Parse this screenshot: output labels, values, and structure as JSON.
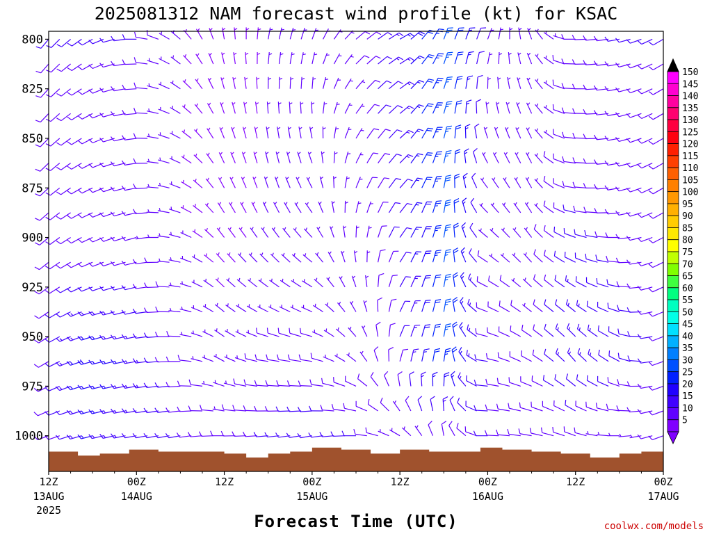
{
  "chart_data": {
    "type": "wind-barb-time-height",
    "title": "2025081312 NAM forecast wind profile (kt) for KSAC",
    "xlabel": "Forecast Time (UTC)",
    "ylabel": "",
    "credit": "coolwx.com/models",
    "x_range": [
      "2025-08-13 12Z",
      "2025-08-17 00Z"
    ],
    "x_ticks": [
      {
        "t": 0,
        "hour": "12Z",
        "date": "13AUG",
        "year": "2025"
      },
      {
        "t": 12,
        "hour": "00Z",
        "date": "14AUG",
        "year": ""
      },
      {
        "t": 24,
        "hour": "12Z",
        "date": "",
        "year": ""
      },
      {
        "t": 36,
        "hour": "00Z",
        "date": "15AUG",
        "year": ""
      },
      {
        "t": 48,
        "hour": "12Z",
        "date": "",
        "year": ""
      },
      {
        "t": 60,
        "hour": "00Z",
        "date": "16AUG",
        "year": ""
      },
      {
        "t": 72,
        "hour": "12Z",
        "date": "",
        "year": ""
      },
      {
        "t": 84,
        "hour": "00Z",
        "date": "17AUG",
        "year": ""
      }
    ],
    "y_ticks_hpa": [
      800,
      825,
      850,
      875,
      900,
      925,
      950,
      975,
      1000
    ],
    "y_range_hpa": [
      796,
      1018
    ],
    "time_step_hours": 1.5,
    "colorbar_kt": [
      "150",
      "145",
      "140",
      "135",
      "130",
      "125",
      "120",
      "115",
      "110",
      "105",
      "100",
      "95",
      "90",
      "85",
      "80",
      "75",
      "70",
      "65",
      "60",
      "55",
      "50",
      "45",
      "40",
      "35",
      "30",
      "25",
      "20",
      "15",
      "10",
      "5"
    ],
    "colorbar_colors": [
      "#ff00ff",
      "#ff00d0",
      "#ff00a0",
      "#ff0070",
      "#ff0040",
      "#ff0010",
      "#ff2000",
      "#ff4000",
      "#ff6000",
      "#ff8000",
      "#ff9800",
      "#ffb000",
      "#ffcc00",
      "#ffe800",
      "#ffff00",
      "#c0ff00",
      "#80ff00",
      "#40ff40",
      "#00ff80",
      "#00ffc0",
      "#00ffe8",
      "#00e0ff",
      "#00b0ff",
      "#0080ff",
      "#0050ff",
      "#0020ff",
      "#2000ff",
      "#4000ff",
      "#6000ff",
      "#8000ff"
    ],
    "surface_pressure_hpa": [
      {
        "t": 0,
        "p": 1008
      },
      {
        "t": 4,
        "p": 1010
      },
      {
        "t": 7,
        "p": 1009
      },
      {
        "t": 11,
        "p": 1007
      },
      {
        "t": 15,
        "p": 1008
      },
      {
        "t": 21,
        "p": 1008
      },
      {
        "t": 24,
        "p": 1009
      },
      {
        "t": 27,
        "p": 1011
      },
      {
        "t": 30,
        "p": 1009
      },
      {
        "t": 33,
        "p": 1008
      },
      {
        "t": 36,
        "p": 1006
      },
      {
        "t": 40,
        "p": 1007
      },
      {
        "t": 44,
        "p": 1009
      },
      {
        "t": 48,
        "p": 1007
      },
      {
        "t": 52,
        "p": 1008
      },
      {
        "t": 56,
        "p": 1008
      },
      {
        "t": 59,
        "p": 1006
      },
      {
        "t": 62,
        "p": 1007
      },
      {
        "t": 66,
        "p": 1008
      },
      {
        "t": 70,
        "p": 1009
      },
      {
        "t": 74,
        "p": 1011
      },
      {
        "t": 78,
        "p": 1009
      },
      {
        "t": 81,
        "p": 1008
      },
      {
        "t": 84,
        "p": 1008
      }
    ],
    "ground_color": "#a0522d",
    "barb_profiles": [
      {
        "t": 0,
        "levels": [
          {
            "p": 800,
            "dir": 220,
            "kt": 10
          },
          {
            "p": 900,
            "dir": 230,
            "kt": 8
          },
          {
            "p": 965,
            "dir": 240,
            "kt": 10
          },
          {
            "p": 1000,
            "dir": 250,
            "kt": 8
          }
        ]
      },
      {
        "t": 6,
        "levels": [
          {
            "p": 800,
            "dir": 240,
            "kt": 10
          },
          {
            "p": 900,
            "dir": 245,
            "kt": 8
          },
          {
            "p": 965,
            "dir": 255,
            "kt": 18
          },
          {
            "p": 1000,
            "dir": 255,
            "kt": 15
          }
        ]
      },
      {
        "t": 12,
        "levels": [
          {
            "p": 800,
            "dir": 270,
            "kt": 10
          },
          {
            "p": 900,
            "dir": 255,
            "kt": 8
          },
          {
            "p": 965,
            "dir": 260,
            "kt": 15
          },
          {
            "p": 1000,
            "dir": 260,
            "kt": 12
          }
        ]
      },
      {
        "t": 18,
        "levels": [
          {
            "p": 800,
            "dir": 310,
            "kt": 5
          },
          {
            "p": 880,
            "dir": 290,
            "kt": 5
          },
          {
            "p": 960,
            "dir": 270,
            "kt": 8
          },
          {
            "p": 1000,
            "dir": 260,
            "kt": 10
          }
        ]
      },
      {
        "t": 24,
        "levels": [
          {
            "p": 800,
            "dir": 350,
            "kt": 4
          },
          {
            "p": 880,
            "dir": 330,
            "kt": 3
          },
          {
            "p": 960,
            "dir": 300,
            "kt": 6
          },
          {
            "p": 1000,
            "dir": 270,
            "kt": 8
          }
        ]
      },
      {
        "t": 30,
        "levels": [
          {
            "p": 800,
            "dir": 10,
            "kt": 5
          },
          {
            "p": 880,
            "dir": 340,
            "kt": 5
          },
          {
            "p": 960,
            "dir": 280,
            "kt": 8
          },
          {
            "p": 1000,
            "dir": 265,
            "kt": 10
          }
        ]
      },
      {
        "t": 36,
        "levels": [
          {
            "p": 800,
            "dir": 20,
            "kt": 5
          },
          {
            "p": 880,
            "dir": 330,
            "kt": 5
          },
          {
            "p": 960,
            "dir": 280,
            "kt": 8
          },
          {
            "p": 1000,
            "dir": 260,
            "kt": 12
          }
        ]
      },
      {
        "t": 42,
        "levels": [
          {
            "p": 800,
            "dir": 50,
            "kt": 8
          },
          {
            "p": 880,
            "dir": 20,
            "kt": 6
          },
          {
            "p": 960,
            "dir": 310,
            "kt": 6
          },
          {
            "p": 1000,
            "dir": 270,
            "kt": 10
          }
        ]
      },
      {
        "t": 48,
        "levels": [
          {
            "p": 800,
            "dir": 60,
            "kt": 15
          },
          {
            "p": 880,
            "dir": 40,
            "kt": 12
          },
          {
            "p": 960,
            "dir": 20,
            "kt": 10
          },
          {
            "p": 1000,
            "dir": 300,
            "kt": 6
          }
        ]
      },
      {
        "t": 54,
        "levels": [
          {
            "p": 800,
            "dir": 20,
            "kt": 25
          },
          {
            "p": 880,
            "dir": 10,
            "kt": 28
          },
          {
            "p": 960,
            "dir": 10,
            "kt": 25
          },
          {
            "p": 1000,
            "dir": 350,
            "kt": 8
          }
        ]
      },
      {
        "t": 60,
        "levels": [
          {
            "p": 800,
            "dir": 20,
            "kt": 6
          },
          {
            "p": 880,
            "dir": 320,
            "kt": 6
          },
          {
            "p": 960,
            "dir": 280,
            "kt": 10
          },
          {
            "p": 1000,
            "dir": 270,
            "kt": 10
          }
        ]
      },
      {
        "t": 66,
        "levels": [
          {
            "p": 800,
            "dir": 340,
            "kt": 5
          },
          {
            "p": 880,
            "dir": 330,
            "kt": 6
          },
          {
            "p": 960,
            "dir": 300,
            "kt": 8
          },
          {
            "p": 1000,
            "dir": 280,
            "kt": 8
          }
        ]
      },
      {
        "t": 72,
        "levels": [
          {
            "p": 800,
            "dir": 270,
            "kt": 8
          },
          {
            "p": 880,
            "dir": 280,
            "kt": 10
          },
          {
            "p": 960,
            "dir": 320,
            "kt": 15
          },
          {
            "p": 1000,
            "dir": 290,
            "kt": 8
          }
        ]
      },
      {
        "t": 78,
        "levels": [
          {
            "p": 800,
            "dir": 260,
            "kt": 10
          },
          {
            "p": 880,
            "dir": 260,
            "kt": 8
          },
          {
            "p": 960,
            "dir": 300,
            "kt": 12
          },
          {
            "p": 1000,
            "dir": 270,
            "kt": 6
          }
        ]
      },
      {
        "t": 84,
        "levels": [
          {
            "p": 800,
            "dir": 240,
            "kt": 10
          },
          {
            "p": 880,
            "dir": 240,
            "kt": 8
          },
          {
            "p": 960,
            "dir": 250,
            "kt": 10
          },
          {
            "p": 1000,
            "dir": 250,
            "kt": 8
          }
        ]
      }
    ]
  }
}
